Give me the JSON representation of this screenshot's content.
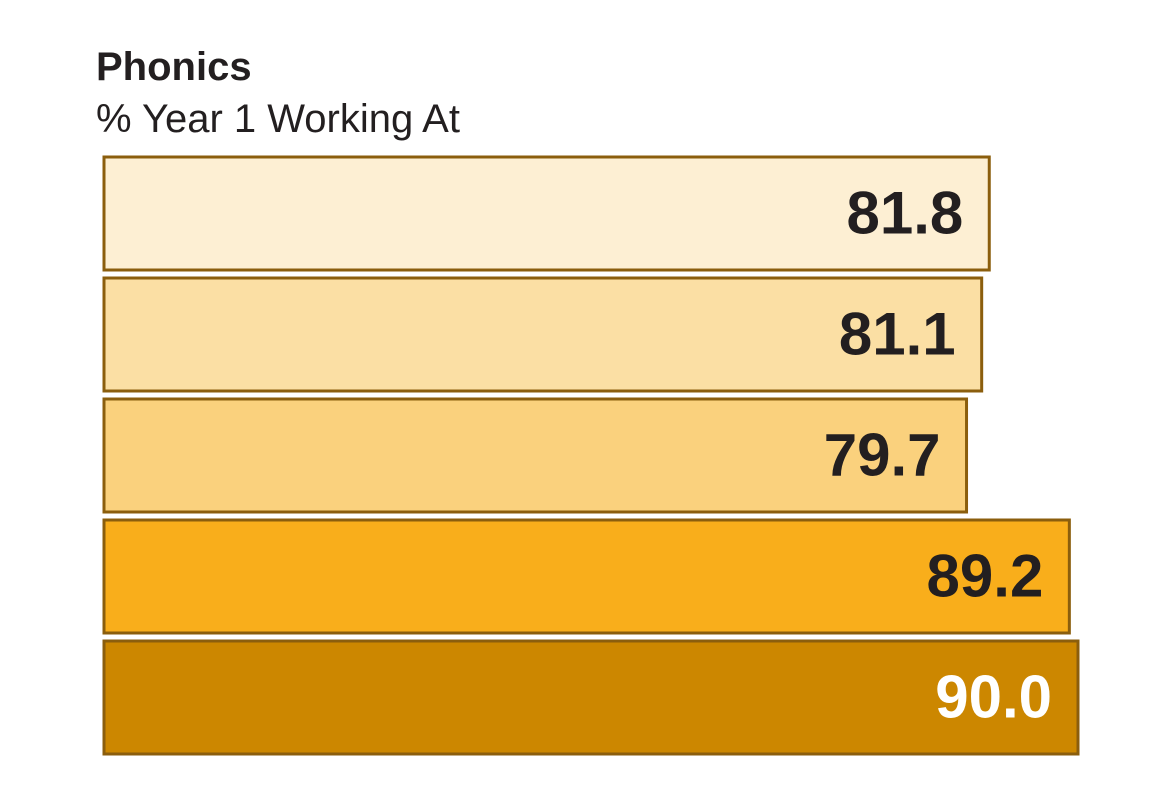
{
  "chart_data": {
    "type": "bar",
    "orientation": "horizontal",
    "title": "Phonics",
    "subtitle": "% Year 1 Working At",
    "xlim": [
      0,
      90.0
    ],
    "grid": false,
    "values": [
      81.8,
      81.1,
      79.7,
      89.2,
      90.0
    ],
    "value_labels": [
      "81.8",
      "81.1",
      "79.7",
      "89.2",
      "90.0"
    ],
    "bar_colors": [
      "#fdefd3",
      "#fbdfa4",
      "#fad17d",
      "#f9ae1b",
      "#cc8700"
    ],
    "border_color": "#8b5e0d",
    "label_colors": [
      "#231f20",
      "#231f20",
      "#231f20",
      "#231f20",
      "#ffffff"
    ]
  }
}
